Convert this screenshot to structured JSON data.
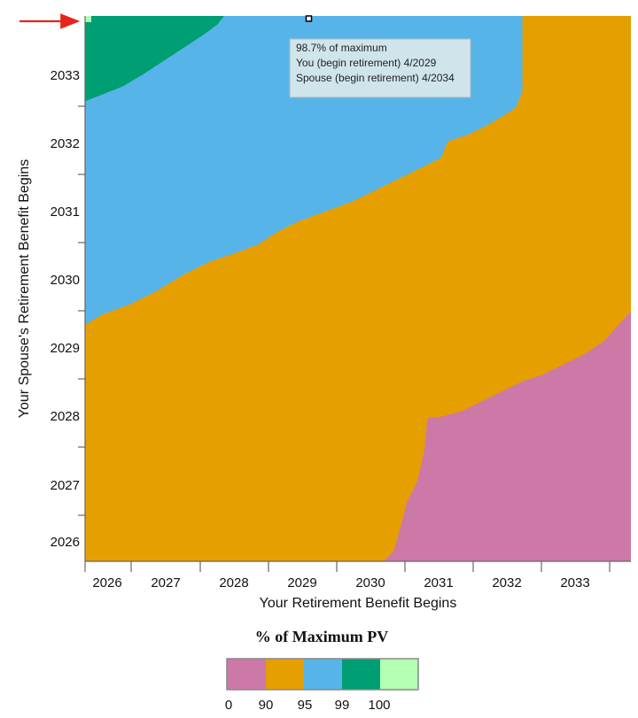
{
  "chart_data": {
    "type": "heatmap",
    "title": "",
    "xlabel": "Your Retirement Benefit Begins",
    "ylabel": "Your Spouse's Retirement Benefit Begins",
    "x_ticks": [
      "2026",
      "2027",
      "2028",
      "2029",
      "2030",
      "2031",
      "2032",
      "2033"
    ],
    "y_ticks": [
      "2026",
      "2027",
      "2028",
      "2029",
      "2030",
      "2031",
      "2032",
      "2033"
    ],
    "xlim": [
      2025.95,
      2034.0
    ],
    "ylim": [
      2025.7,
      2033.88
    ],
    "bands": [
      {
        "range": "0-90",
        "color": "#cc79a7"
      },
      {
        "range": "90-95",
        "color": "#e69f00"
      },
      {
        "range": "95-99",
        "color": "#56b4e9"
      },
      {
        "range": "99-100",
        "color": "#009e73"
      },
      {
        "range": "100",
        "color": "#b3ffb3"
      }
    ],
    "boundaries": {
      "pink_orange": [
        [
          2030.35,
          2025.7
        ],
        [
          2030.5,
          2025.85
        ],
        [
          2030.6,
          2026.2
        ],
        [
          2030.7,
          2026.6
        ],
        [
          2030.85,
          2026.9
        ],
        [
          2030.95,
          2027.35
        ],
        [
          2031.0,
          2027.85
        ],
        [
          2031.2,
          2027.87
        ],
        [
          2031.5,
          2027.95
        ],
        [
          2031.8,
          2028.1
        ],
        [
          2032.1,
          2028.25
        ],
        [
          2032.4,
          2028.4
        ],
        [
          2032.7,
          2028.5
        ],
        [
          2033.0,
          2028.65
        ],
        [
          2033.3,
          2028.8
        ],
        [
          2033.6,
          2029.0
        ],
        [
          2034.0,
          2029.45
        ]
      ],
      "orange_blue": [
        [
          2025.95,
          2029.25
        ],
        [
          2026.2,
          2029.4
        ],
        [
          2026.6,
          2029.55
        ],
        [
          2027.0,
          2029.75
        ],
        [
          2027.4,
          2030.0
        ],
        [
          2027.8,
          2030.2
        ],
        [
          2028.1,
          2030.3
        ],
        [
          2028.5,
          2030.45
        ],
        [
          2028.8,
          2030.65
        ],
        [
          2029.1,
          2030.8
        ],
        [
          2029.5,
          2030.95
        ],
        [
          2029.9,
          2031.1
        ],
        [
          2030.3,
          2031.3
        ],
        [
          2030.6,
          2031.45
        ],
        [
          2030.9,
          2031.6
        ],
        [
          2031.2,
          2031.75
        ],
        [
          2031.3,
          2032.0
        ],
        [
          2031.6,
          2032.1
        ],
        [
          2031.9,
          2032.25
        ],
        [
          2032.3,
          2032.5
        ],
        [
          2032.4,
          2032.75
        ],
        [
          2032.4,
          2033.88
        ]
      ],
      "blue_green": [
        [
          2025.95,
          2032.6
        ],
        [
          2026.2,
          2032.7
        ],
        [
          2026.5,
          2032.82
        ],
        [
          2026.8,
          2033.0
        ],
        [
          2027.1,
          2033.2
        ],
        [
          2027.4,
          2033.4
        ],
        [
          2027.7,
          2033.6
        ],
        [
          2027.9,
          2033.75
        ],
        [
          2028.0,
          2033.88
        ]
      ]
    },
    "marker": {
      "x": 2029.25,
      "y": 2033.88
    },
    "tooltip": [
      "98.7% of maximum",
      "You (begin retirement) 4/2029",
      "Spouse (begin retirement) 4/2034"
    ],
    "legend_title": "% of Maximum PV",
    "legend_ticks": [
      "0",
      "90",
      "95",
      "99",
      "100"
    ]
  }
}
